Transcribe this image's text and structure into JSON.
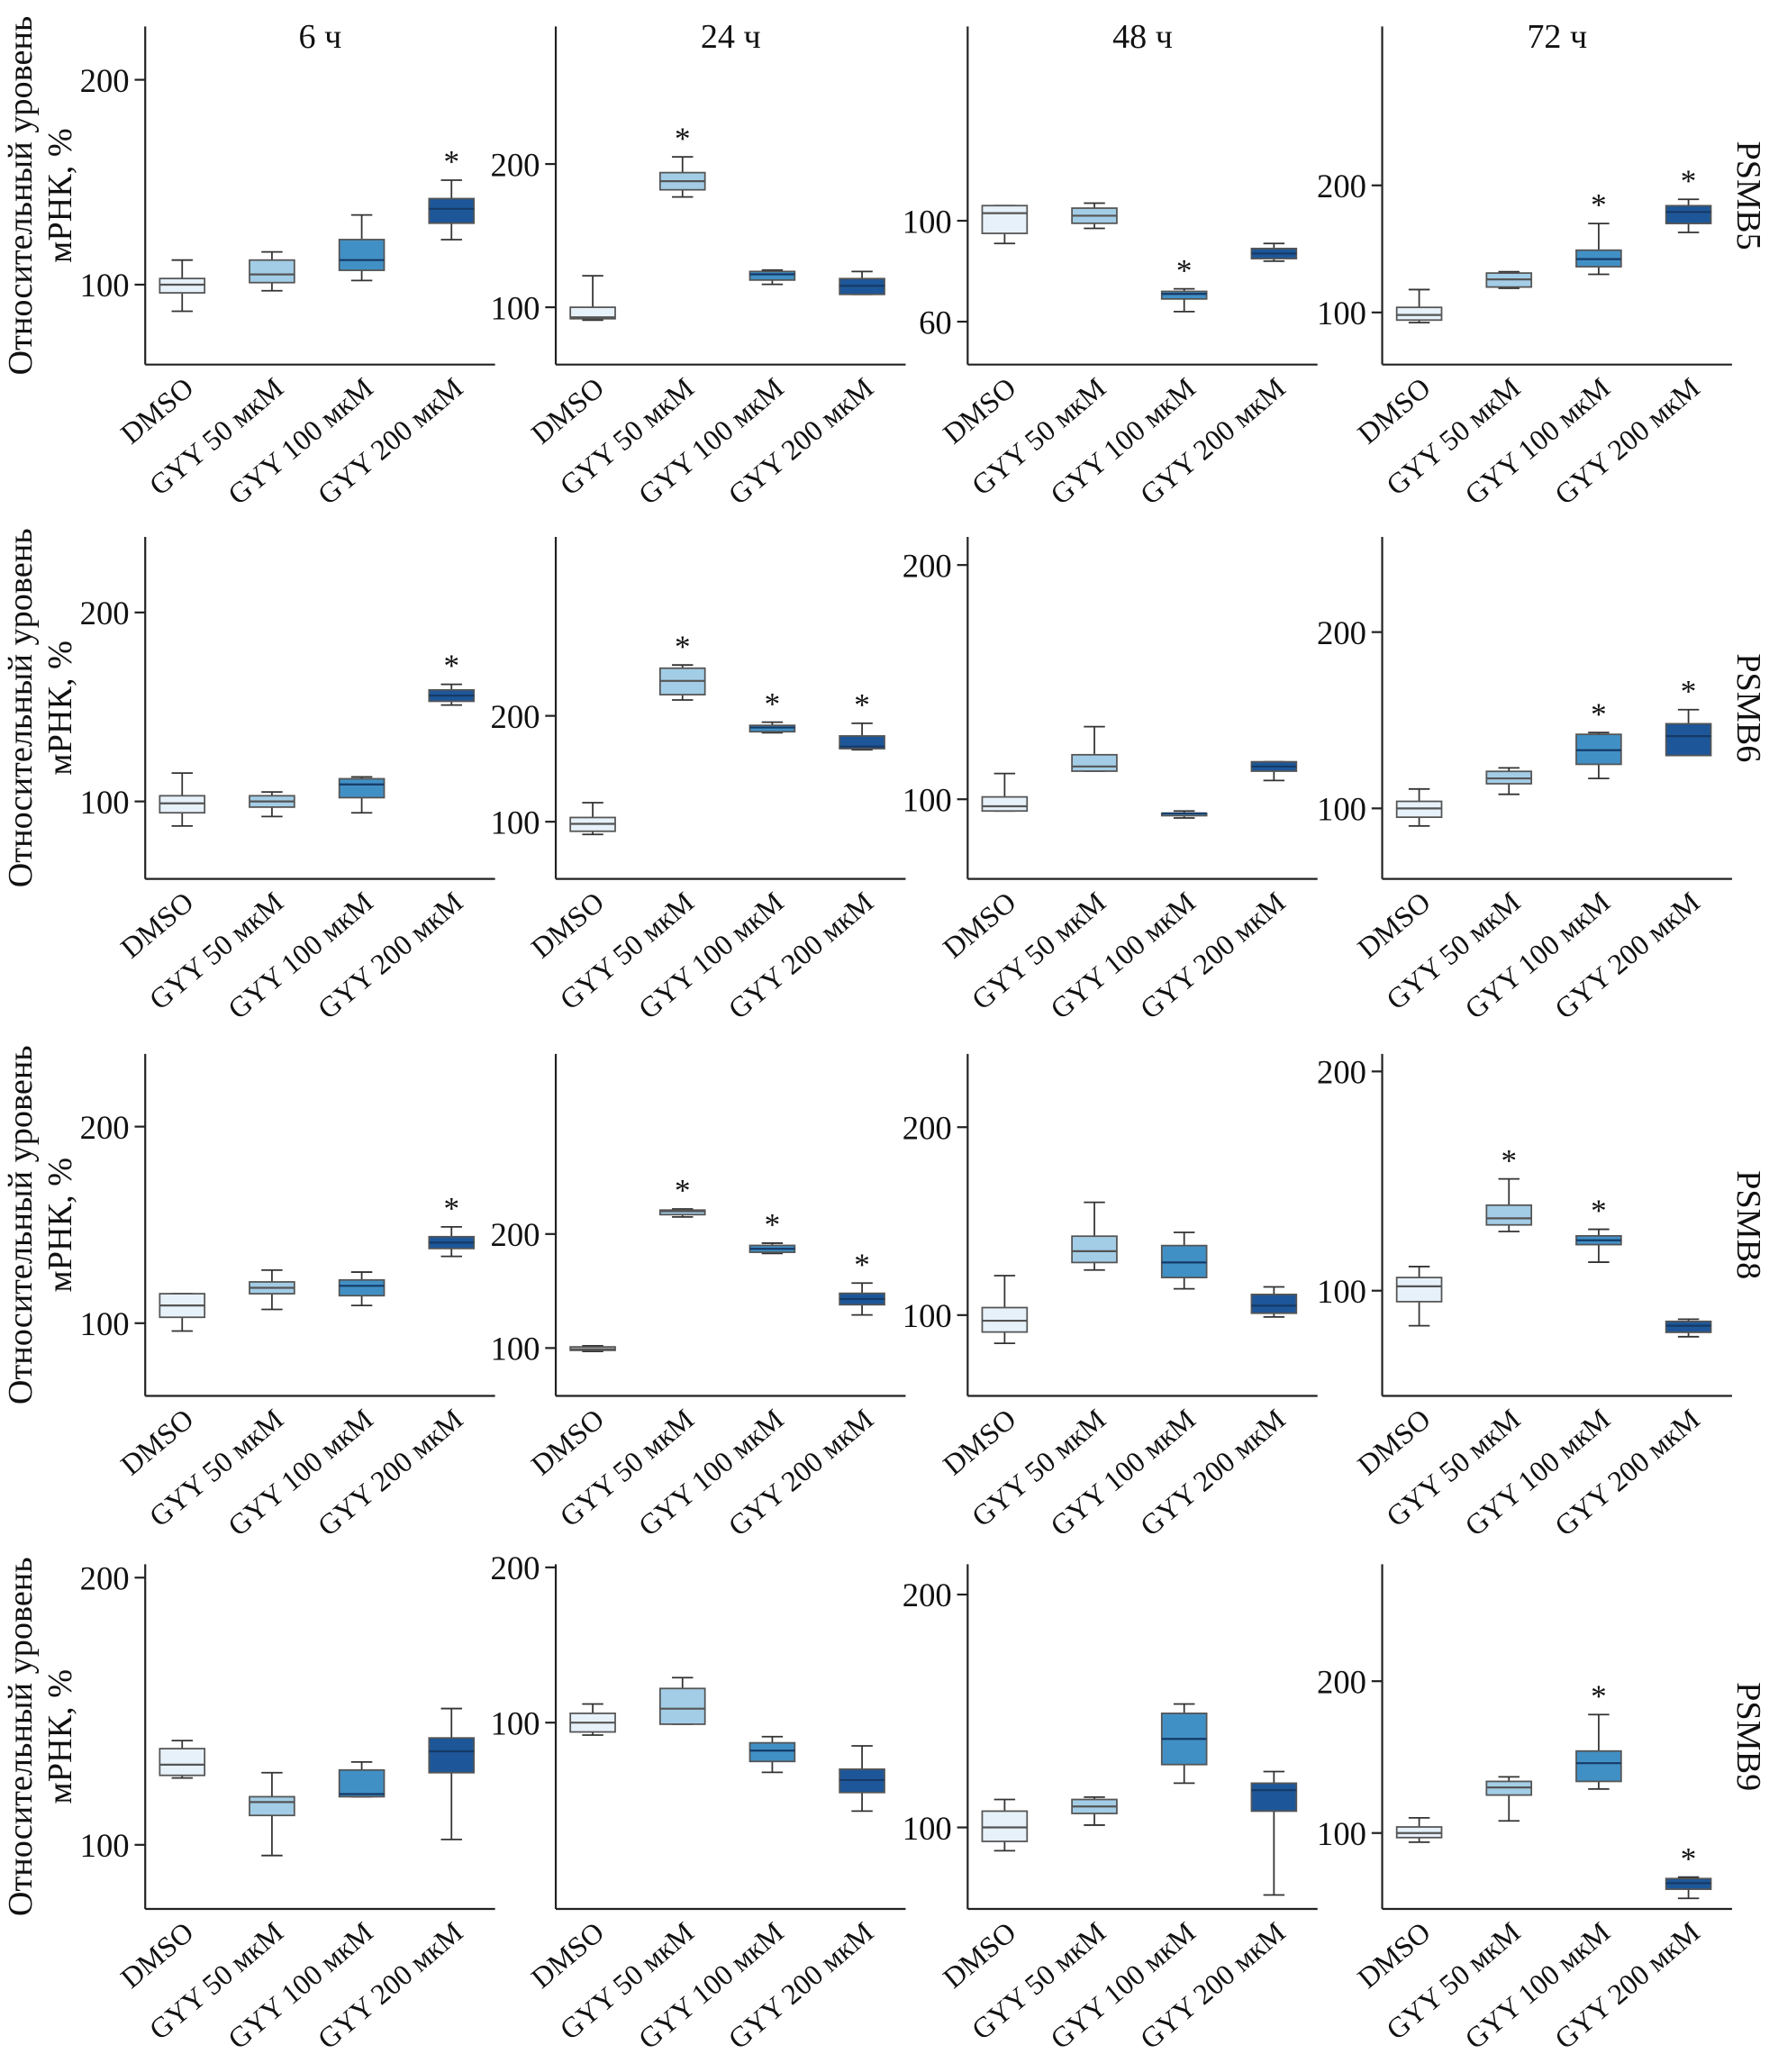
{
  "chart_data": [
    {
      "type": "box",
      "title": "6 ч",
      "y_label": [
        "Относительный уровень",
        "мРНК, %"
      ],
      "categories": [
        "DMSO",
        "GYY 50 мкМ",
        "GYY 100 мкМ",
        "GYY 200 мкМ"
      ],
      "colors": [
        "#e6f1fa",
        "#a3cde6",
        "#4190c5",
        "#1d5799"
      ],
      "whislo": [
        87,
        97,
        102,
        122
      ],
      "q1": [
        96,
        101,
        107,
        130
      ],
      "med": [
        100,
        105,
        112,
        137
      ],
      "q3": [
        103,
        112,
        122,
        142
      ],
      "whishi": [
        112,
        116,
        134,
        151
      ],
      "significance": [
        null,
        null,
        null,
        "*"
      ],
      "ylim": [
        61,
        226
      ],
      "yticks": [
        100,
        200
      ]
    },
    {
      "type": "box",
      "title": "24 ч",
      "categories": [
        "DMSO",
        "GYY 50 мкМ",
        "GYY 100 мкМ",
        "GYY 200 мкМ"
      ],
      "colors": [
        "#e6f1fa",
        "#a3cde6",
        "#4190c5",
        "#1d5799"
      ],
      "whislo": [
        91,
        177,
        116,
        109
      ],
      "q1": [
        92,
        182,
        119,
        109
      ],
      "med": [
        93,
        188,
        123,
        115
      ],
      "q3": [
        100,
        194,
        125,
        120
      ],
      "whishi": [
        122,
        205,
        126,
        125
      ],
      "significance": [
        null,
        "*",
        null,
        null
      ],
      "ylim": [
        60,
        296
      ],
      "yticks": [
        100,
        200
      ]
    },
    {
      "type": "box",
      "title": "48 ч",
      "categories": [
        "DMSO",
        "GYY 50 мкМ",
        "GYY 100 мкМ",
        "GYY 200 мкМ"
      ],
      "colors": [
        "#e6f1fa",
        "#a3cde6",
        "#4190c5",
        "#1d5799"
      ],
      "whislo": [
        91,
        97,
        64,
        84
      ],
      "q1": [
        95,
        99,
        69,
        85
      ],
      "med": [
        103,
        102,
        71,
        87
      ],
      "q3": [
        106,
        105,
        72,
        89
      ],
      "whishi": [
        106,
        107,
        73,
        91
      ],
      "significance": [
        null,
        null,
        "*",
        null
      ],
      "ylim": [
        43,
        177
      ],
      "yticks": [
        60,
        100
      ]
    },
    {
      "type": "box",
      "title": "72 ч",
      "gene": "PSMB5",
      "categories": [
        "DMSO",
        "GYY 50 мкМ",
        "GYY 100 мкМ",
        "GYY 200 мкМ"
      ],
      "colors": [
        "#e6f1fa",
        "#a3cde6",
        "#4190c5",
        "#1d5799"
      ],
      "whislo": [
        92,
        119,
        130,
        163
      ],
      "q1": [
        94,
        120,
        136,
        170
      ],
      "med": [
        98,
        126,
        142,
        179
      ],
      "q3": [
        104,
        131,
        149,
        184
      ],
      "whishi": [
        118,
        132,
        170,
        189
      ],
      "significance": [
        null,
        null,
        "*",
        "*"
      ],
      "ylim": [
        59,
        325
      ],
      "yticks": [
        100,
        200
      ]
    },
    {
      "type": "box",
      "y_label": [
        "Относительный уровень",
        "мРНК, %"
      ],
      "categories": [
        "DMSO",
        "GYY 50 мкМ",
        "GYY 100 мкМ",
        "GYY 200 мкМ"
      ],
      "colors": [
        "#e6f1fa",
        "#a3cde6",
        "#4190c5",
        "#1d5799"
      ],
      "whislo": [
        87,
        92,
        94,
        151
      ],
      "q1": [
        94,
        97,
        102,
        153
      ],
      "med": [
        99,
        100,
        109,
        156
      ],
      "q3": [
        103,
        103,
        112,
        159
      ],
      "whishi": [
        115,
        105,
        113,
        162
      ],
      "significance": [
        null,
        null,
        null,
        "*"
      ],
      "ylim": [
        59,
        240
      ],
      "yticks": [
        100,
        200
      ]
    },
    {
      "type": "box",
      "categories": [
        "DMSO",
        "GYY 50 мкМ",
        "GYY 100 мкМ",
        "GYY 200 мкМ"
      ],
      "colors": [
        "#e6f1fa",
        "#a3cde6",
        "#4190c5",
        "#1d5799"
      ],
      "whislo": [
        88,
        215,
        184,
        168
      ],
      "q1": [
        91,
        220,
        185,
        169
      ],
      "med": [
        98,
        233,
        189,
        171
      ],
      "q3": [
        104,
        245,
        191,
        181
      ],
      "whishi": [
        118,
        248,
        194,
        193
      ],
      "significance": [
        null,
        "*",
        "*",
        "*"
      ],
      "ylim": [
        46,
        369
      ],
      "yticks": [
        100,
        200
      ]
    },
    {
      "type": "box",
      "categories": [
        "DMSO",
        "GYY 50 мкМ",
        "GYY 100 мкМ",
        "GYY 200 мкМ"
      ],
      "colors": [
        "#e6f1fa",
        "#a3cde6",
        "#4190c5",
        "#1d5799"
      ],
      "whislo": [
        95,
        112,
        92,
        108
      ],
      "q1": [
        95,
        112,
        93,
        112
      ],
      "med": [
        97,
        114,
        94,
        114
      ],
      "q3": [
        101,
        119,
        94,
        116
      ],
      "whishi": [
        111,
        131,
        95,
        116
      ],
      "significance": [
        null,
        null,
        null,
        null
      ],
      "ylim": [
        66,
        212
      ],
      "yticks": [
        100,
        200
      ]
    },
    {
      "type": "box",
      "gene": "PSMB6",
      "categories": [
        "DMSO",
        "GYY 50 мкМ",
        "GYY 100 мкМ",
        "GYY 200 мкМ"
      ],
      "colors": [
        "#e6f1fa",
        "#a3cde6",
        "#4190c5",
        "#1d5799"
      ],
      "whislo": [
        90,
        108,
        117,
        130
      ],
      "q1": [
        95,
        114,
        125,
        130
      ],
      "med": [
        100,
        117,
        133,
        141
      ],
      "q3": [
        104,
        121,
        142,
        148
      ],
      "whishi": [
        111,
        123,
        143,
        156
      ],
      "significance": [
        null,
        null,
        "*",
        "*"
      ],
      "ylim": [
        60,
        254
      ],
      "yticks": [
        100,
        200
      ]
    },
    {
      "type": "box",
      "y_label": [
        "Относительный уровень",
        "мРНК, %"
      ],
      "categories": [
        "DMSO",
        "GYY 50 мкМ",
        "GYY 100 мкМ",
        "GYY 200 мкМ"
      ],
      "colors": [
        "#e6f1fa",
        "#a3cde6",
        "#4190c5",
        "#1d5799"
      ],
      "whislo": [
        96,
        107,
        109,
        134
      ],
      "q1": [
        103,
        115,
        114,
        138
      ],
      "med": [
        109,
        118,
        119,
        141
      ],
      "q3": [
        115,
        121,
        122,
        144
      ],
      "whishi": [
        115,
        127,
        126,
        149
      ],
      "significance": [
        null,
        null,
        null,
        "*"
      ],
      "ylim": [
        63,
        237
      ],
      "yticks": [
        100,
        200
      ]
    },
    {
      "type": "box",
      "categories": [
        "DMSO",
        "GYY 50 мкМ",
        "GYY 100 мкМ",
        "GYY 200 мкМ"
      ],
      "colors": [
        "#e6f1fa",
        "#a3cde6",
        "#4190c5",
        "#1d5799"
      ],
      "whislo": [
        97,
        215,
        183,
        129
      ],
      "q1": [
        98,
        217,
        184,
        138
      ],
      "med": [
        99,
        220,
        187,
        143
      ],
      "q3": [
        101,
        221,
        190,
        148
      ],
      "whishi": [
        102,
        222,
        192,
        157
      ],
      "significance": [
        null,
        "*",
        "*",
        "*"
      ],
      "ylim": [
        58,
        358
      ],
      "yticks": [
        100,
        200
      ]
    },
    {
      "type": "box",
      "categories": [
        "DMSO",
        "GYY 50 мкМ",
        "GYY 100 мкМ",
        "GYY 200 мкМ"
      ],
      "colors": [
        "#e6f1fa",
        "#a3cde6",
        "#4190c5",
        "#1d5799"
      ],
      "whislo": [
        85,
        124,
        114,
        99
      ],
      "q1": [
        91,
        128,
        120,
        101
      ],
      "med": [
        97,
        134,
        128,
        105
      ],
      "q3": [
        104,
        142,
        137,
        111
      ],
      "whishi": [
        121,
        160,
        144,
        115
      ],
      "significance": [
        null,
        null,
        null,
        null
      ],
      "ylim": [
        57,
        239
      ],
      "yticks": [
        100,
        200
      ]
    },
    {
      "type": "box",
      "gene": "PSMB8",
      "categories": [
        "DMSO",
        "GYY 50 мкМ",
        "GYY 100 мкМ",
        "GYY 200 мкМ"
      ],
      "colors": [
        "#e6f1fa",
        "#a3cde6",
        "#4190c5",
        "#1d5799"
      ],
      "whislo": [
        84,
        127,
        113,
        79
      ],
      "q1": [
        95,
        130,
        121,
        81
      ],
      "med": [
        102,
        133,
        123,
        84
      ],
      "q3": [
        106,
        139,
        125,
        86
      ],
      "whishi": [
        111,
        151,
        128,
        87
      ],
      "significance": [
        null,
        "*",
        "*",
        null
      ],
      "ylim": [
        52,
        208
      ],
      "yticks": [
        100,
        200
      ]
    },
    {
      "type": "box",
      "y_label": [
        "Относительный уровень",
        "мРНК, %"
      ],
      "categories": [
        "DMSO",
        "GYY 50 мкМ",
        "GYY 100 мкМ",
        "GYY 200 мкМ"
      ],
      "colors": [
        "#e6f1fa",
        "#a3cde6",
        "#4190c5",
        "#1d5799"
      ],
      "whislo": [
        125,
        96,
        118,
        102
      ],
      "q1": [
        126,
        111,
        118,
        127
      ],
      "med": [
        130,
        116,
        119,
        135
      ],
      "q3": [
        136,
        118,
        128,
        140
      ],
      "whishi": [
        139,
        127,
        131,
        151
      ],
      "significance": [
        null,
        null,
        null,
        null
      ],
      "ylim": [
        76,
        205
      ],
      "yticks": [
        100,
        200
      ]
    },
    {
      "type": "box",
      "categories": [
        "DMSO",
        "GYY 50 мкМ",
        "GYY 100 мкМ",
        "GYY 200 мкМ"
      ],
      "colors": [
        "#e6f1fa",
        "#a3cde6",
        "#4190c5",
        "#1d5799"
      ],
      "whislo": [
        92,
        99,
        68,
        43
      ],
      "q1": [
        94,
        99,
        75,
        55
      ],
      "med": [
        100,
        109,
        82,
        63
      ],
      "q3": [
        106,
        122,
        87,
        70
      ],
      "whishi": [
        112,
        129,
        91,
        85
      ],
      "significance": [
        null,
        null,
        null,
        null
      ],
      "ylim": [
        -20,
        202
      ],
      "yticks": [
        100,
        200
      ]
    },
    {
      "type": "box",
      "categories": [
        "DMSO",
        "GYY 50 мкМ",
        "GYY 100 мкМ",
        "GYY 200 мкМ"
      ],
      "colors": [
        "#e6f1fa",
        "#a3cde6",
        "#4190c5",
        "#1d5799"
      ],
      "whislo": [
        90,
        101,
        119,
        71
      ],
      "q1": [
        94,
        106,
        127,
        107
      ],
      "med": [
        100,
        109,
        138,
        116
      ],
      "q3": [
        107,
        112,
        149,
        119
      ],
      "whishi": [
        112,
        113,
        153,
        124
      ],
      "significance": [
        null,
        null,
        null,
        null
      ],
      "ylim": [
        65,
        213
      ],
      "yticks": [
        100,
        200
      ]
    },
    {
      "type": "box",
      "gene": "PSMB9",
      "categories": [
        "DMSO",
        "GYY 50 мкМ",
        "GYY 100 мкМ",
        "GYY 200 мкМ"
      ],
      "colors": [
        "#e6f1fa",
        "#a3cde6",
        "#4190c5",
        "#1d5799"
      ],
      "whislo": [
        94,
        108,
        129,
        57
      ],
      "q1": [
        97,
        125,
        134,
        63
      ],
      "med": [
        100,
        130,
        146,
        67
      ],
      "q3": [
        104,
        134,
        154,
        70
      ],
      "whishi": [
        110,
        137,
        178,
        71
      ],
      "significance": [
        null,
        null,
        "*",
        "*"
      ],
      "ylim": [
        50,
        277
      ],
      "yticks": [
        100,
        200
      ]
    }
  ]
}
